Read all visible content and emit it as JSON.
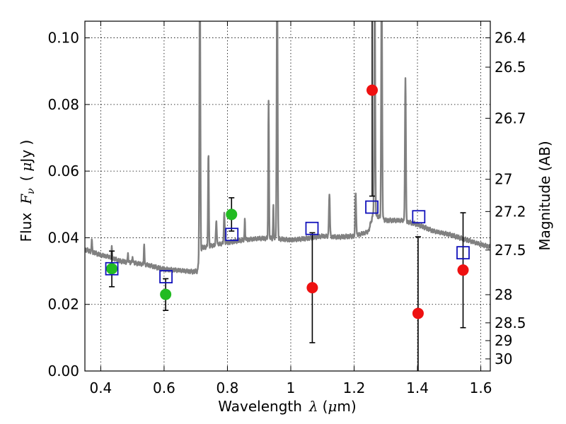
{
  "chart_data": {
    "type": "scatter",
    "xlabel_main": "Wavelength",
    "xlabel_symbol": "λ",
    "xlabel_unit_open": "(",
    "xlabel_unit_mu": "μ",
    "xlabel_unit_rest": "m)",
    "ylabel_main": "Flux",
    "ylabel_symbol": "F",
    "ylabel_sub": "ν",
    "ylabel_unit_open": "(",
    "ylabel_unit_mu": "μ",
    "ylabel_unit_rest": "Jy )",
    "y2label": "Magnitude (AB)",
    "xlim": [
      0.35,
      1.63
    ],
    "ylim": [
      0.0,
      0.105
    ],
    "grid": true,
    "xticks": [
      {
        "v": 0.4,
        "label": "0.4"
      },
      {
        "v": 0.6,
        "label": "0.6"
      },
      {
        "v": 0.8,
        "label": "0.8"
      },
      {
        "v": 1.0,
        "label": "1"
      },
      {
        "v": 1.2,
        "label": "1.2"
      },
      {
        "v": 1.4,
        "label": "1.4"
      },
      {
        "v": 1.6,
        "label": "1.6"
      }
    ],
    "yticks": [
      {
        "v": 0.0,
        "label": "0.00"
      },
      {
        "v": 0.02,
        "label": "0.02"
      },
      {
        "v": 0.04,
        "label": "0.04"
      },
      {
        "v": 0.06,
        "label": "0.06"
      },
      {
        "v": 0.08,
        "label": "0.08"
      },
      {
        "v": 0.1,
        "label": "0.10"
      }
    ],
    "y2ticks": [
      {
        "mag": 26.4,
        "label": "26.4"
      },
      {
        "mag": 26.5,
        "label": "26.5"
      },
      {
        "mag": 26.7,
        "label": "26.7"
      },
      {
        "mag": 27.0,
        "label": "27"
      },
      {
        "mag": 27.2,
        "label": "27.2"
      },
      {
        "mag": 27.5,
        "label": "27.5"
      },
      {
        "mag": 28.0,
        "label": "28"
      },
      {
        "mag": 28.5,
        "label": "28.5"
      },
      {
        "mag": 29.0,
        "label": "29"
      },
      {
        "mag": 30.0,
        "label": "30"
      }
    ],
    "colors": {
      "spectrum": "#808080",
      "detection": "#22bb22",
      "upper": "#ee1111",
      "model": "#1111bb",
      "errorbar": "#000000"
    },
    "spectrum_continuum": [
      [
        0.35,
        0.0365
      ],
      [
        0.38,
        0.0355
      ],
      [
        0.4,
        0.0348
      ],
      [
        0.43,
        0.0342
      ],
      [
        0.46,
        0.033
      ],
      [
        0.5,
        0.0325
      ],
      [
        0.55,
        0.0318
      ],
      [
        0.6,
        0.0305
      ],
      [
        0.65,
        0.0302
      ],
      [
        0.69,
        0.0298
      ],
      [
        0.705,
        0.03
      ],
      [
        0.72,
        0.037
      ],
      [
        0.78,
        0.0382
      ],
      [
        0.84,
        0.0392
      ],
      [
        0.9,
        0.0398
      ],
      [
        0.95,
        0.0398
      ],
      [
        1.0,
        0.0393
      ],
      [
        1.05,
        0.0398
      ],
      [
        1.1,
        0.0405
      ],
      [
        1.15,
        0.0402
      ],
      [
        1.2,
        0.0405
      ],
      [
        1.245,
        0.0418
      ],
      [
        1.26,
        0.047
      ],
      [
        1.3,
        0.0452
      ],
      [
        1.35,
        0.0452
      ],
      [
        1.4,
        0.044
      ],
      [
        1.45,
        0.042
      ],
      [
        1.5,
        0.041
      ],
      [
        1.55,
        0.0395
      ],
      [
        1.6,
        0.038
      ],
      [
        1.63,
        0.0372
      ]
    ],
    "spectrum_lines": [
      {
        "center": 0.372,
        "peak": 0.039,
        "width": 0.0025
      },
      {
        "center": 0.435,
        "peak": 0.037,
        "width": 0.002
      },
      {
        "center": 0.486,
        "peak": 0.0355,
        "width": 0.002
      },
      {
        "center": 0.5007,
        "peak": 0.0345,
        "width": 0.002
      },
      {
        "center": 0.537,
        "peak": 0.0385,
        "width": 0.002
      },
      {
        "center": 0.713,
        "peak": 0.12,
        "width": 0.003
      },
      {
        "center": 0.74,
        "peak": 0.0655,
        "width": 0.0025
      },
      {
        "center": 0.765,
        "peak": 0.045,
        "width": 0.003
      },
      {
        "center": 0.79,
        "peak": 0.047,
        "width": 0.003
      },
      {
        "center": 0.855,
        "peak": 0.0455,
        "width": 0.002
      },
      {
        "center": 0.93,
        "peak": 0.081,
        "width": 0.0025
      },
      {
        "center": 0.945,
        "peak": 0.0495,
        "width": 0.002
      },
      {
        "center": 0.957,
        "peak": 0.12,
        "width": 0.003
      },
      {
        "center": 1.122,
        "peak": 0.0535,
        "width": 0.003
      },
      {
        "center": 1.205,
        "peak": 0.0535,
        "width": 0.003
      },
      {
        "center": 1.265,
        "peak": 0.12,
        "width": 0.003
      },
      {
        "center": 1.287,
        "peak": 0.12,
        "width": 0.003
      },
      {
        "center": 1.362,
        "peak": 0.088,
        "width": 0.003
      }
    ],
    "series": [
      {
        "role": "detection",
        "marker": "circle",
        "points": [
          {
            "x": 0.435,
            "y": 0.0307,
            "err_low": 0.0253,
            "err_high": 0.036
          },
          {
            "x": 0.605,
            "y": 0.023,
            "err_low": 0.0182,
            "err_high": 0.0277
          },
          {
            "x": 0.813,
            "y": 0.047,
            "err_low": 0.042,
            "err_high": 0.052
          }
        ]
      },
      {
        "role": "upper",
        "marker": "circle",
        "points": [
          {
            "x": 1.068,
            "y": 0.025,
            "err_low": 0.0085,
            "err_high": 0.0415
          },
          {
            "x": 1.257,
            "y": 0.0843,
            "err_low": 0.0525,
            "err_high": 0.12
          },
          {
            "x": 1.402,
            "y": 0.0173,
            "err_low": -0.01,
            "err_high": 0.0403
          },
          {
            "x": 1.544,
            "y": 0.0303,
            "err_low": 0.013,
            "err_high": 0.0475
          }
        ]
      },
      {
        "role": "model",
        "marker": "square",
        "points": [
          {
            "x": 0.435,
            "y": 0.0307
          },
          {
            "x": 0.606,
            "y": 0.0283
          },
          {
            "x": 0.814,
            "y": 0.041
          },
          {
            "x": 1.067,
            "y": 0.0428
          },
          {
            "x": 1.256,
            "y": 0.0492
          },
          {
            "x": 1.404,
            "y": 0.0463
          },
          {
            "x": 1.544,
            "y": 0.0355
          }
        ]
      }
    ]
  }
}
